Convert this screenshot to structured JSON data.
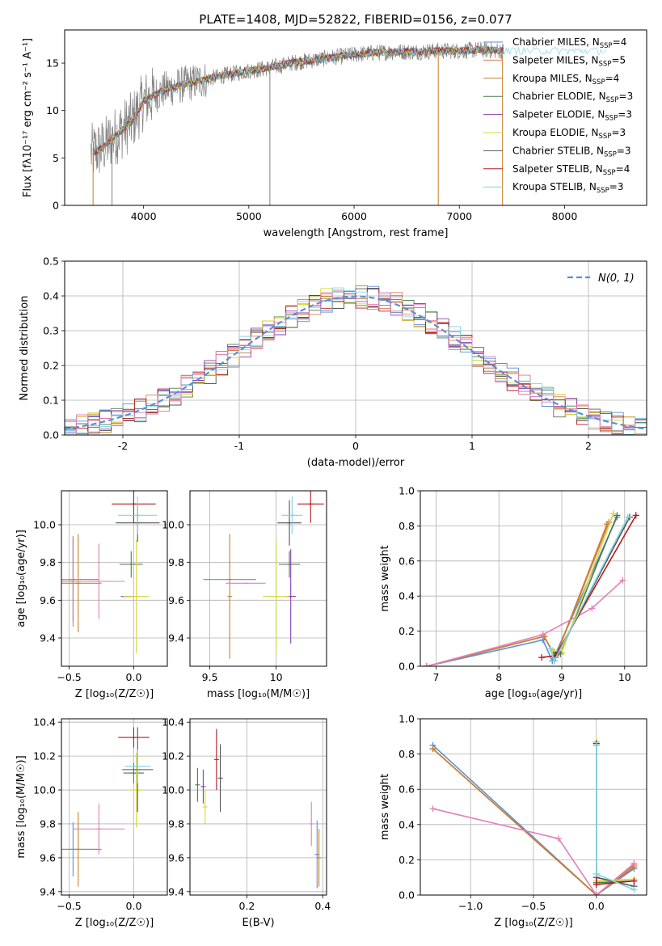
{
  "figure_title": "PLATE=1408, MJD=52822, FIBERID=0156, z=0.077",
  "colors": {
    "Chabrier MILES": "#5b8fd6",
    "Salpeter MILES": "#e07a5f",
    "Kroupa MILES": "#c87f2a",
    "Chabrier ELODIE": "#4c7a4c",
    "Salpeter ELODIE": "#8a3fb0",
    "Kroupa ELODIE": "#d6d63a",
    "Chabrier STELIB": "#555555",
    "Salpeter STELIB": "#b01c1c",
    "Kroupa STELIB": "#7fd6e6",
    "data": "#808080",
    "pink_model": "#e37fb8",
    "normal_curve": "#5b8fd6"
  },
  "chart_data": [
    {
      "id": "spectrum",
      "type": "line",
      "title": "PLATE=1408, MJD=52822, FIBERID=0156, z=0.077",
      "xlabel": "wavelength [Angstrom, rest frame]",
      "ylabel": "Flux [fλ10⁻¹⁷ erg cm⁻² s⁻¹ A⁻¹]",
      "xlim": [
        3250,
        8780
      ],
      "ylim": [
        0,
        18.5
      ],
      "xticks": [
        4000,
        5000,
        6000,
        7000,
        8000
      ],
      "yticks": [
        0,
        5,
        10,
        15
      ],
      "grid": false,
      "legend_position": "top-right",
      "legend": [
        {
          "label": "Chabrier MILES, N",
          "sub": "SSP",
          "suffix": "=4"
        },
        {
          "label": "Salpeter MILES, N",
          "sub": "SSP",
          "suffix": "=5"
        },
        {
          "label": "Kroupa MILES, N",
          "sub": "SSP",
          "suffix": "=4"
        },
        {
          "label": "Chabrier ELODIE, N",
          "sub": "SSP",
          "suffix": "=3"
        },
        {
          "label": "Salpeter ELODIE, N",
          "sub": "SSP",
          "suffix": "=3"
        },
        {
          "label": "Kroupa ELODIE, N",
          "sub": "SSP",
          "suffix": "=3"
        },
        {
          "label": "Chabrier STELIB, N",
          "sub": "SSP",
          "suffix": "=3"
        },
        {
          "label": "Salpeter STELIB, N",
          "sub": "SSP",
          "suffix": "=4"
        },
        {
          "label": "Kroupa STELIB, N",
          "sub": "SSP",
          "suffix": "=3"
        }
      ],
      "data_trend": {
        "x": [
          3500,
          3600,
          3700,
          3800,
          3900,
          4000,
          4200,
          4400,
          4600,
          4800,
          5000,
          5200,
          5400,
          5600,
          5800,
          6000,
          6200,
          6400,
          6600,
          6800,
          7000,
          7200,
          7400
        ],
        "y": [
          5.5,
          6.0,
          7.0,
          8.0,
          9.0,
          11.0,
          12.2,
          12.8,
          13.3,
          13.8,
          14.2,
          14.5,
          15.0,
          15.3,
          15.6,
          15.9,
          16.1,
          16.2,
          16.2,
          16.3,
          16.3,
          16.4,
          16.3
        ]
      },
      "model_range": {
        "segments": [
          [
            3520,
            7420
          ],
          [
            3520,
            8400
          ],
          [
            3520,
            7420
          ]
        ]
      }
    },
    {
      "id": "residuals",
      "type": "line",
      "xlabel": "(data-model)/error",
      "ylabel": "Normed distribution",
      "xlim": [
        -2.5,
        2.5
      ],
      "ylim": [
        0,
        0.5
      ],
      "xticks": [
        -2,
        -1,
        0,
        1,
        2
      ],
      "yticks": [
        0.0,
        0.1,
        0.2,
        0.3,
        0.4,
        0.5
      ],
      "grid": true,
      "legend_position": "top-right",
      "legend": [
        {
          "label": "N(0, 1)"
        }
      ],
      "hist_bins": [
        -2.5,
        -2.4,
        -2.3,
        -2.2,
        -2.1,
        -2.0,
        -1.9,
        -1.8,
        -1.7,
        -1.6,
        -1.5,
        -1.4,
        -1.3,
        -1.2,
        -1.1,
        -1.0,
        -0.9,
        -0.8,
        -0.7,
        -0.6,
        -0.5,
        -0.4,
        -0.3,
        -0.2,
        -0.1,
        0.0,
        0.1,
        0.2,
        0.3,
        0.4,
        0.5,
        0.6,
        0.7,
        0.8,
        0.9,
        1.0,
        1.1,
        1.2,
        1.3,
        1.4,
        1.5,
        1.6,
        1.7,
        1.8,
        1.9,
        2.0,
        2.1,
        2.2,
        2.3,
        2.4,
        2.5
      ]
    },
    {
      "id": "age_vs_Z",
      "type": "scatter",
      "xlabel": "Z [log₁₀(Z/Z☉)]",
      "ylabel": "age [log₁₀(age/yr)]",
      "xlim": [
        -0.56,
        0.26
      ],
      "ylim": [
        9.25,
        10.18
      ],
      "xticks": [
        -0.5,
        0.0
      ],
      "xticklabels": [
        "−0.5",
        "0.0"
      ],
      "yticks": [
        9.4,
        9.6,
        9.8,
        10.0
      ],
      "grid": true,
      "points": [
        {
          "model": "Chabrier MILES",
          "x": -0.47,
          "y": 9.71,
          "xerr": 0.2,
          "yerr": 0.22
        },
        {
          "model": "Kroupa MILES",
          "x": -0.43,
          "y": 9.69,
          "xerr": 0.18,
          "yerr": 0.26
        },
        {
          "model": "Salpeter MILES",
          "x": -0.47,
          "y": 9.7,
          "xerr": 0.2,
          "yerr": 0.24
        },
        {
          "model": "pink_model",
          "x": -0.27,
          "y": 9.7,
          "xerr": 0.2,
          "yerr": 0.2
        },
        {
          "model": "Chabrier ELODIE",
          "x": -0.02,
          "y": 9.79,
          "xerr": 0.09,
          "yerr": 0.07
        },
        {
          "model": "Salpeter ELODIE",
          "x": -0.05,
          "y": 9.62,
          "xerr": 0.05,
          "yerr": 0.0
        },
        {
          "model": "Kroupa ELODIE",
          "x": 0.02,
          "y": 9.62,
          "xerr": 0.1,
          "yerr": 0.3
        },
        {
          "model": "Chabrier STELIB",
          "x": 0.03,
          "y": 10.01,
          "xerr": 0.17,
          "yerr": 0.1
        },
        {
          "model": "Salpeter STELIB",
          "x": 0.0,
          "y": 10.11,
          "xerr": 0.17,
          "yerr": 0.1
        },
        {
          "model": "Kroupa STELIB",
          "x": 0.03,
          "y": 10.05,
          "xerr": 0.15,
          "yerr": 0.1
        }
      ]
    },
    {
      "id": "age_vs_mass",
      "type": "scatter",
      "xlabel": "mass [log₁₀(M/M☉)]",
      "ylabel": "",
      "xlim": [
        9.35,
        10.38
      ],
      "ylim": [
        9.25,
        10.18
      ],
      "xticks": [
        9.5,
        10.0
      ],
      "yticks": [
        9.4,
        9.6,
        9.8,
        10.0
      ],
      "grid": true,
      "points": [
        {
          "model": "Chabrier MILES",
          "x": 9.65,
          "y": 9.71,
          "xerr": 0.2,
          "yerr": 0.0
        },
        {
          "model": "Kroupa MILES",
          "x": 9.65,
          "y": 9.62,
          "xerr": 0.0,
          "yerr": 0.33
        },
        {
          "model": "pink_model",
          "x": 9.77,
          "y": 9.69,
          "xerr": 0.15,
          "yerr": 0.0
        },
        {
          "model": "Chabrier ELODIE",
          "x": 10.1,
          "y": 9.79,
          "xerr": 0.08,
          "yerr": 0.07
        },
        {
          "model": "Salpeter ELODIE",
          "x": 10.11,
          "y": 9.62,
          "xerr": 0.04,
          "yerr": 0.25
        },
        {
          "model": "Kroupa ELODIE",
          "x": 10.0,
          "y": 9.62,
          "xerr": 0.1,
          "yerr": 0.3
        },
        {
          "model": "Chabrier STELIB",
          "x": 10.1,
          "y": 10.01,
          "xerr": 0.09,
          "yerr": 0.12
        },
        {
          "model": "Salpeter STELIB",
          "x": 10.26,
          "y": 10.11,
          "xerr": 0.1,
          "yerr": 0.1
        },
        {
          "model": "Kroupa STELIB",
          "x": 10.12,
          "y": 10.05,
          "xerr": 0.08,
          "yerr": 0.1
        }
      ]
    },
    {
      "id": "weight_vs_age",
      "type": "line",
      "xlabel": "age [log₁₀(age/yr)]",
      "ylabel": "mass weight",
      "xlim": [
        6.75,
        10.35
      ],
      "ylim": [
        0,
        1.0
      ],
      "xticks": [
        7,
        8,
        9,
        10
      ],
      "yticks": [
        0.0,
        0.2,
        0.4,
        0.6,
        0.8,
        1.0
      ],
      "grid": true,
      "series": [
        {
          "model": "Chabrier MILES",
          "x": [
            6.85,
            8.7,
            8.85,
            9.88
          ],
          "y": [
            0.0,
            0.15,
            0.03,
            0.85
          ]
        },
        {
          "model": "Salpeter MILES",
          "x": [
            6.85,
            8.72,
            8.9,
            9.75
          ],
          "y": [
            0.0,
            0.17,
            0.05,
            0.82
          ]
        },
        {
          "model": "Kroupa MILES",
          "x": [
            6.85,
            8.72,
            8.9,
            9.72
          ],
          "y": [
            0.0,
            0.17,
            0.05,
            0.81
          ]
        },
        {
          "model": "pink_model",
          "x": [
            6.85,
            8.7,
            9.48,
            9.97
          ],
          "y": [
            0.0,
            0.18,
            0.33,
            0.49
          ]
        },
        {
          "model": "Chabrier ELODIE",
          "x": [
            8.88,
            8.98,
            9.88
          ],
          "y": [
            0.08,
            0.07,
            0.86
          ]
        },
        {
          "model": "Kroupa ELODIE",
          "x": [
            8.85,
            9.0,
            9.82
          ],
          "y": [
            0.09,
            0.08,
            0.87
          ]
        },
        {
          "model": "Chabrier STELIB",
          "x": [
            8.88,
            8.95,
            10.08
          ],
          "y": [
            0.03,
            0.08,
            0.85
          ]
        },
        {
          "model": "Salpeter STELIB",
          "x": [
            8.68,
            8.9,
            10.18
          ],
          "y": [
            0.05,
            0.06,
            0.86
          ]
        },
        {
          "model": "Kroupa STELIB",
          "x": [
            8.82,
            8.88,
            10.05
          ],
          "y": [
            0.1,
            0.03,
            0.85
          ]
        }
      ]
    },
    {
      "id": "mass_vs_Z",
      "type": "scatter",
      "xlabel": "Z [log₁₀(Z/Z☉)]",
      "ylabel": "mass [log₁₀(M/M☉)]",
      "xlim": [
        -0.56,
        0.26
      ],
      "ylim": [
        9.38,
        10.42
      ],
      "xticks": [
        -0.5,
        0.0
      ],
      "xticklabels": [
        "−0.5",
        "0.0"
      ],
      "yticks": [
        9.4,
        9.6,
        9.8,
        10.0,
        10.2,
        10.4
      ],
      "grid": true,
      "points": [
        {
          "model": "Chabrier MILES",
          "x": -0.47,
          "y": 9.65,
          "xerr": 0.2,
          "yerr": 0.16
        },
        {
          "model": "Kroupa MILES",
          "x": -0.43,
          "y": 9.65,
          "xerr": 0.18,
          "yerr": 0.22
        },
        {
          "model": "pink_model",
          "x": -0.27,
          "y": 9.77,
          "xerr": 0.2,
          "yerr": 0.15
        },
        {
          "model": "Chabrier ELODIE",
          "x": 0.0,
          "y": 10.1,
          "xerr": 0.08,
          "yerr": 0.06
        },
        {
          "model": "Kroupa ELODIE",
          "x": 0.02,
          "y": 10.0,
          "xerr": 0.06,
          "yerr": 0.22
        },
        {
          "model": "Chabrier STELIB",
          "x": 0.03,
          "y": 10.12,
          "xerr": 0.12,
          "yerr": 0.25
        },
        {
          "model": "Salpeter STELIB",
          "x": 0.0,
          "y": 10.31,
          "xerr": 0.12,
          "yerr": 0.06
        },
        {
          "model": "Kroupa STELIB",
          "x": 0.03,
          "y": 10.14,
          "xerr": 0.1,
          "yerr": 0.1
        }
      ]
    },
    {
      "id": "mass_vs_EBV",
      "type": "scatter",
      "xlabel": "E(B-V)",
      "ylabel": "",
      "xlim": [
        0.05,
        0.41
      ],
      "ylim": [
        9.38,
        10.42
      ],
      "xticks": [
        0.2,
        0.4
      ],
      "yticks": [
        9.4,
        9.6,
        9.8,
        10.0,
        10.2,
        10.4
      ],
      "grid": true,
      "points": [
        {
          "model": "Chabrier ELODIE",
          "x": 0.07,
          "y": 10.03,
          "xerr": 0.0,
          "yerr": 0.1
        },
        {
          "model": "Salpeter ELODIE",
          "x": 0.085,
          "y": 10.02,
          "xerr": 0.0,
          "yerr": 0.1
        },
        {
          "model": "Kroupa ELODIE",
          "x": 0.09,
          "y": 9.9,
          "xerr": 0.0,
          "yerr": 0.1
        },
        {
          "model": "Salpeter STELIB",
          "x": 0.12,
          "y": 10.18,
          "xerr": 0.0,
          "yerr": 0.18
        },
        {
          "model": "Chabrier STELIB",
          "x": 0.13,
          "y": 10.07,
          "xerr": 0.0,
          "yerr": 0.2
        },
        {
          "model": "pink_model",
          "x": 0.37,
          "y": 9.8,
          "xerr": 0.0,
          "yerr": 0.13
        },
        {
          "model": "Chabrier MILES",
          "x": 0.385,
          "y": 9.62,
          "xerr": 0.0,
          "yerr": 0.2
        },
        {
          "model": "Kroupa MILES",
          "x": 0.39,
          "y": 9.6,
          "xerr": 0.0,
          "yerr": 0.17
        }
      ]
    },
    {
      "id": "weight_vs_Z",
      "type": "line",
      "xlabel": "Z [log₁₀(Z/Z☉)]",
      "ylabel": "mass weight",
      "xlim": [
        -1.4,
        0.4
      ],
      "ylim": [
        0,
        1.0
      ],
      "xticks": [
        -1.0,
        -0.5,
        0.0
      ],
      "xticklabels": [
        "−1.0",
        "−0.5",
        "0.0"
      ],
      "yticks": [
        0.0,
        0.2,
        0.4,
        0.6,
        0.8,
        1.0
      ],
      "grid": true,
      "series": [
        {
          "model": "Chabrier MILES",
          "x": [
            -1.3,
            0.0,
            0.3
          ],
          "y": [
            0.85,
            0.0,
            0.15
          ]
        },
        {
          "model": "Salpeter MILES",
          "x": [
            -1.3,
            0.0,
            0.3
          ],
          "y": [
            0.83,
            0.0,
            0.17
          ]
        },
        {
          "model": "Kroupa MILES",
          "x": [
            -1.3,
            0.0,
            0.3
          ],
          "y": [
            0.83,
            0.0,
            0.16
          ]
        },
        {
          "model": "pink_model",
          "x": [
            -1.3,
            -0.3,
            0.0,
            0.3
          ],
          "y": [
            0.49,
            0.32,
            0.0,
            0.18
          ]
        },
        {
          "model": "Chabrier ELODIE",
          "x": [
            0.0,
            0.0,
            0.3
          ],
          "y": [
            0.85,
            0.07,
            0.08
          ]
        },
        {
          "model": "Kroupa ELODIE",
          "x": [
            0.0,
            0.0,
            0.3
          ],
          "y": [
            0.87,
            0.08,
            0.09
          ]
        },
        {
          "model": "Chabrier STELIB",
          "x": [
            0.0,
            0.0,
            0.3
          ],
          "y": [
            0.86,
            0.1,
            0.05
          ]
        },
        {
          "model": "Salpeter STELIB",
          "x": [
            0.0,
            0.0,
            0.3
          ],
          "y": [
            0.86,
            0.06,
            0.08
          ]
        },
        {
          "model": "Kroupa STELIB",
          "x": [
            0.0,
            0.0,
            0.3
          ],
          "y": [
            0.85,
            0.12,
            0.03
          ]
        }
      ]
    }
  ]
}
